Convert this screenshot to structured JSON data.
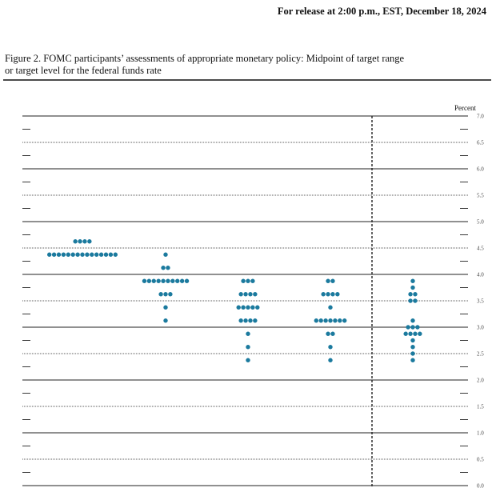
{
  "header": {
    "release": "For release at 2:00 p.m., EST, December 18, 2024"
  },
  "chart_data": {
    "type": "dotplot",
    "title_lines": [
      "Figure 2.  FOMC participants’ assessments of appropriate monetary policy: Midpoint of target range",
      "or target level for the federal funds rate"
    ],
    "ylabel": "Percent",
    "color": "#1b7a9e",
    "ylim": [
      0,
      7
    ],
    "yticks": [
      {
        "value": 0,
        "label": "0.0"
      },
      {
        "value": 0.5,
        "label": "0.5"
      },
      {
        "value": 1,
        "label": "1.0"
      },
      {
        "value": 1.5,
        "label": "1.5"
      },
      {
        "value": 2,
        "label": "2.0"
      },
      {
        "value": 2.5,
        "label": "2.5"
      },
      {
        "value": 3,
        "label": "3.0"
      },
      {
        "value": 3.5,
        "label": "3.5"
      },
      {
        "value": 4,
        "label": "4.0"
      },
      {
        "value": 4.5,
        "label": "4.5"
      },
      {
        "value": 5,
        "label": "5.0"
      },
      {
        "value": 5.5,
        "label": "5.5"
      },
      {
        "value": 6,
        "label": "6.0"
      },
      {
        "value": 6.5,
        "label": "6.5"
      },
      {
        "value": 7,
        "label": "7.0"
      }
    ],
    "minor_yticks": [
      0.25,
      0.75,
      1.25,
      1.75,
      2.25,
      2.75,
      3.25,
      3.75,
      4.25,
      4.75,
      5.25,
      5.75,
      6.25,
      6.75
    ],
    "columns": [
      {
        "levels": [
          4.625,
          4.375
        ],
        "counts": [
          4,
          15
        ]
      },
      {
        "levels": [
          4.375,
          4.125,
          3.875,
          3.625,
          3.375,
          3.125
        ],
        "counts": [
          1,
          2,
          10,
          3,
          1,
          1
        ]
      },
      {
        "levels": [
          3.875,
          3.625,
          3.375,
          3.125,
          2.875,
          2.625,
          2.375
        ],
        "counts": [
          3,
          4,
          5,
          4,
          1,
          1,
          1
        ]
      },
      {
        "levels": [
          3.875,
          3.625,
          3.375,
          3.125,
          2.875,
          2.625,
          2.375
        ],
        "counts": [
          2,
          4,
          1,
          7,
          2,
          1,
          1
        ]
      },
      {
        "levels": [
          3.875,
          3.75,
          3.625,
          3.5,
          3.125,
          3,
          2.875,
          2.75,
          2.625,
          2.5,
          2.375
        ],
        "counts": [
          1,
          1,
          2,
          2,
          1,
          3,
          4,
          1,
          1,
          1,
          1
        ]
      }
    ]
  }
}
